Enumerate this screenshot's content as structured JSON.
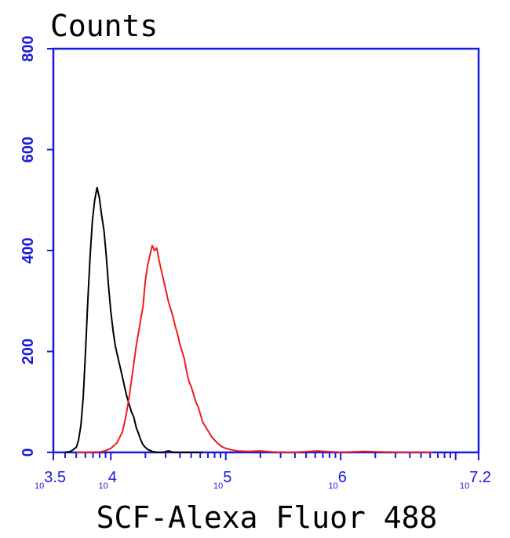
{
  "chart_data": {
    "type": "line",
    "title": "",
    "ylabel": "Counts",
    "xlabel": "SCF-Alexa Fluor 488",
    "x_scale": "log10",
    "xlim_log10": [
      3.5,
      7.2
    ],
    "ylim": [
      0,
      800
    ],
    "y_ticks": [
      0,
      200,
      400,
      600,
      800
    ],
    "y_tick_labels": [
      "0",
      "200",
      "400",
      "600",
      "800"
    ],
    "x_tick_labels": [
      {
        "base": "10",
        "exp": "3.5",
        "log10": 3.5
      },
      {
        "base": "10",
        "exp": "4",
        "log10": 4
      },
      {
        "base": "10",
        "exp": "5",
        "log10": 5
      },
      {
        "base": "10",
        "exp": "6",
        "log10": 6
      },
      {
        "base": "10",
        "exp": "7.2",
        "log10": 7.2
      }
    ],
    "grid": false,
    "legend": "none",
    "axis_color": "#1a1adc",
    "series": [
      {
        "color": "#000000",
        "x_log10": [
          3.6,
          3.65,
          3.7,
          3.72,
          3.74,
          3.76,
          3.78,
          3.8,
          3.82,
          3.84,
          3.86,
          3.88,
          3.9,
          3.92,
          3.94,
          3.96,
          3.98,
          4.0,
          4.02,
          4.04,
          4.06,
          4.08,
          4.1,
          4.12,
          4.14,
          4.16,
          4.18,
          4.2,
          4.22,
          4.24,
          4.26,
          4.28,
          4.3,
          4.32,
          4.34,
          4.36,
          4.38,
          4.4,
          4.45,
          4.5,
          4.55,
          4.6,
          4.7,
          4.8
        ],
        "values": [
          0,
          2,
          10,
          25,
          55,
          110,
          200,
          300,
          390,
          460,
          500,
          525,
          505,
          470,
          440,
          390,
          330,
          280,
          240,
          210,
          190,
          170,
          150,
          130,
          110,
          95,
          80,
          70,
          50,
          38,
          25,
          15,
          10,
          6,
          4,
          2,
          1,
          0,
          0,
          3,
          0,
          0,
          0,
          0
        ]
      },
      {
        "color": "#ee1c1c",
        "x_log10": [
          3.7,
          3.8,
          3.9,
          3.95,
          4.0,
          4.05,
          4.1,
          4.13,
          4.16,
          4.19,
          4.22,
          4.25,
          4.28,
          4.3,
          4.32,
          4.34,
          4.36,
          4.38,
          4.4,
          4.42,
          4.44,
          4.46,
          4.48,
          4.5,
          4.52,
          4.54,
          4.56,
          4.58,
          4.6,
          4.62,
          4.64,
          4.66,
          4.68,
          4.7,
          4.72,
          4.74,
          4.76,
          4.78,
          4.8,
          4.84,
          4.88,
          4.92,
          4.96,
          5.0,
          5.05,
          5.1,
          5.2,
          5.3,
          5.4,
          5.5,
          5.6,
          5.8,
          6.0,
          6.2,
          6.5,
          6.8
        ],
        "values": [
          0,
          0,
          1,
          3,
          8,
          18,
          40,
          70,
          110,
          160,
          210,
          250,
          290,
          340,
          370,
          390,
          410,
          400,
          405,
          380,
          360,
          340,
          320,
          300,
          285,
          270,
          250,
          235,
          215,
          200,
          185,
          160,
          140,
          130,
          115,
          100,
          90,
          75,
          60,
          45,
          30,
          20,
          12,
          8,
          5,
          3,
          2,
          3,
          1,
          0,
          0,
          3,
          0,
          2,
          0,
          0
        ]
      }
    ]
  }
}
